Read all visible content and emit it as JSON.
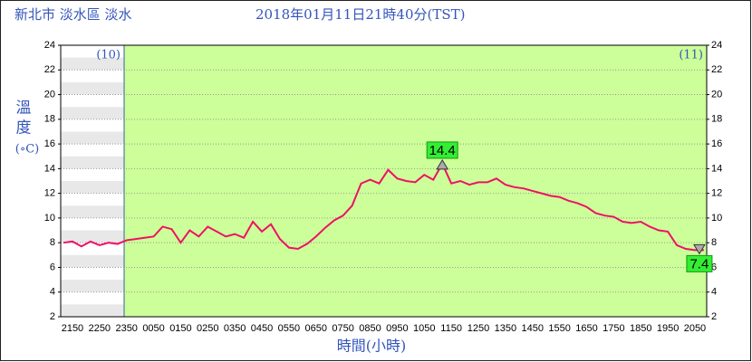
{
  "chart_data": {
    "type": "line",
    "title": "新北市 淡水區 淡水",
    "subtitle": "2018年01月11日21時40分(TST)",
    "y_label": "溫度",
    "y_unit": "(∘C)",
    "x_label": "時間(小時)",
    "day_labels": [
      "(10)",
      "(11)"
    ],
    "categories": [
      null,
      "2150",
      null,
      null,
      "2250",
      null,
      null,
      "2350",
      null,
      null,
      "0050",
      null,
      null,
      "0150",
      null,
      null,
      "0250",
      null,
      null,
      "0350",
      null,
      null,
      "0450",
      null,
      null,
      "0550",
      null,
      null,
      "0650",
      null,
      null,
      "0750",
      null,
      null,
      "0850",
      null,
      null,
      "0950",
      null,
      null,
      "1050",
      null,
      null,
      "1150",
      null,
      null,
      "1250",
      null,
      null,
      "1350",
      null,
      null,
      "1450",
      null,
      null,
      "1550",
      null,
      null,
      "1650",
      null,
      null,
      "1750",
      null,
      null,
      "1850",
      null,
      null,
      "1950",
      null,
      null,
      "2050",
      null
    ],
    "series": [
      {
        "name": "溫度",
        "color": "#ee1166",
        "values": [
          8.0,
          8.1,
          7.7,
          8.1,
          7.8,
          8.0,
          7.9,
          8.2,
          8.3,
          8.4,
          8.5,
          9.3,
          9.1,
          8.0,
          9.0,
          8.5,
          9.3,
          8.9,
          8.5,
          8.7,
          8.4,
          9.7,
          8.9,
          9.5,
          8.3,
          7.6,
          7.5,
          7.9,
          8.5,
          9.2,
          9.8,
          10.2,
          11.0,
          12.8,
          13.1,
          12.8,
          13.9,
          13.2,
          13.0,
          12.9,
          13.5,
          13.1,
          14.4,
          12.8,
          13.0,
          12.7,
          12.9,
          12.9,
          13.2,
          12.7,
          12.5,
          12.4,
          12.2,
          12.0,
          11.8,
          11.7,
          11.4,
          11.2,
          10.9,
          10.4,
          10.2,
          10.1,
          9.7,
          9.6,
          9.7,
          9.3,
          9.0,
          8.9,
          7.8,
          7.5,
          7.4,
          7.4
        ]
      }
    ],
    "ylim": [
      2,
      24
    ],
    "yticks": [
      2,
      4,
      6,
      8,
      10,
      12,
      14,
      16,
      18,
      20,
      22,
      24
    ],
    "y2lim": [
      2,
      24
    ],
    "y2ticks": [
      2,
      4,
      6,
      8,
      10,
      12,
      14,
      16,
      18,
      20,
      22,
      24
    ],
    "plot_color": "#ccff99",
    "grid": true
  }
}
